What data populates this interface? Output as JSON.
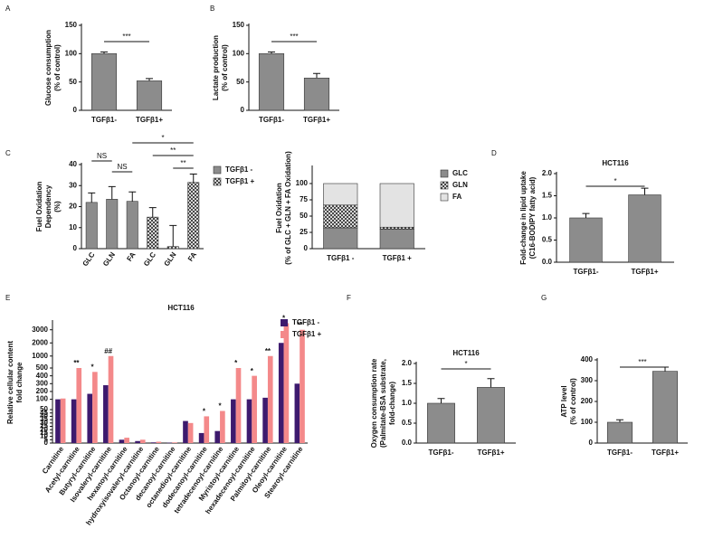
{
  "chart_data": [
    {
      "panel": "A",
      "type": "bar",
      "categories": [
        "TGFβ1-",
        "TGFβ1+"
      ],
      "values": [
        100,
        52
      ],
      "errors": [
        3,
        4
      ],
      "color": "#8c8c8c",
      "ylabel": [
        "Glucose consumption",
        "(% of control)"
      ],
      "ylim": [
        0,
        150
      ],
      "yticks": [
        0,
        50,
        100,
        150
      ],
      "annotations": [
        "***"
      ]
    },
    {
      "panel": "B",
      "type": "bar",
      "categories": [
        "TGFβ1-",
        "TGFβ1+"
      ],
      "values": [
        100,
        57
      ],
      "errors": [
        3,
        8
      ],
      "color": "#8c8c8c",
      "ylabel": [
        "Lactate production",
        "(% of control)"
      ],
      "ylim": [
        0,
        150
      ],
      "yticks": [
        0,
        50,
        100,
        150
      ],
      "annotations": [
        "***"
      ]
    },
    {
      "panel": "C",
      "type": "bar",
      "categories": [
        "GLC",
        "GLN",
        "FA",
        "GLC",
        "GLN",
        "FA"
      ],
      "series": [
        {
          "name": "TGFβ1 -",
          "color": "#8c8c8c",
          "values": [
            22,
            23.5,
            22.5,
            null,
            null,
            null
          ],
          "errors": [
            4.5,
            6,
            4.5,
            null,
            null,
            null
          ]
        },
        {
          "name": "TGFβ1 +",
          "color": "#ffffff",
          "pattern": "crosshatch",
          "values": [
            null,
            null,
            null,
            15,
            1,
            31.5
          ],
          "errors": [
            null,
            null,
            null,
            4.5,
            10,
            4
          ]
        }
      ],
      "ylabel": [
        "Fuel Oxidation",
        "Dependency",
        "(%)"
      ],
      "ylim": [
        0,
        40
      ],
      "yticks": [
        0,
        10,
        20,
        30,
        40
      ],
      "annotations": [
        "NS",
        "NS",
        "*",
        "**",
        "**"
      ]
    },
    {
      "type": "stacked_bar",
      "categories": [
        "TGFβ1 -",
        "TGFβ1 +"
      ],
      "series": [
        {
          "name": "GLC",
          "color": "#8c8c8c",
          "values": [
            32,
            30
          ]
        },
        {
          "name": "GLN",
          "color": "#ffffff",
          "pattern": "crosshatch",
          "values": [
            35,
            3
          ]
        },
        {
          "name": "FA",
          "color": "#e3e3e3",
          "values": [
            33,
            67
          ]
        }
      ],
      "ylabel": [
        "Fuel Oxidation",
        "(% of GLC + GLN + FA Oxidation)"
      ],
      "ylim": [
        0,
        125
      ],
      "yticks": [
        0,
        25,
        50,
        75,
        100
      ]
    },
    {
      "panel": "D",
      "type": "bar",
      "title": "HCT116",
      "categories": [
        "TGFβ1-",
        "TGFβ1+"
      ],
      "values": [
        1.0,
        1.52
      ],
      "errors": [
        0.1,
        0.15
      ],
      "color": "#8c8c8c",
      "ylabel": [
        "Fold-change in lipid uptake",
        "(C16-BODIPY fatty acid)"
      ],
      "ylim": [
        0,
        2.0
      ],
      "yticks": [
        {
          "value": 0,
          "label": "0.0"
        },
        0.5,
        {
          "value": 1,
          "label": "1.0"
        },
        1.5,
        {
          "value": 2,
          "label": "2.0"
        }
      ],
      "annotations": [
        "*"
      ]
    },
    {
      "panel": "E",
      "type": "bar",
      "title": "HCT116",
      "categories": [
        "Carnitine",
        "Acetyl-carnitine",
        "Butyryl-carnitine",
        "Isovaleryl-carnitine",
        "hexanoyl-carnitine",
        "hydroxyisovaleryl-carnitine",
        "Octanoyl-carnitine",
        "decanoyl-carnitine",
        "octanedioyl-carnitine",
        "dodecanoyl-carnitine",
        "tetradecenoyl-carnitine",
        "Myristoyl-carnitine",
        "hexadecenoyl-carnitine",
        "Palmitoyl-carnitine",
        "Oleoyl-carnitine",
        "Stearoyl-carnitine"
      ],
      "series": [
        {
          "name": "TGFβ1 -",
          "color": "#3d1a6e",
          "values": [
            100,
            100,
            170,
            280,
            5,
            3,
            1,
            0.5,
            33,
            15,
            18,
            100,
            100,
            120,
            2000,
            300
          ]
        },
        {
          "name": "TGFβ1 +",
          "color": "#f4898a",
          "values": [
            110,
            500,
            450,
            1000,
            8,
            5,
            2,
            1,
            30,
            40,
            48,
            500,
            400,
            1000,
            3500,
            3000
          ]
        }
      ],
      "ylabel": [
        "Relative cellular content",
        "fold change"
      ],
      "ybreaks": [
        [
          0,
          55
        ],
        [
          80,
          550
        ],
        [
          800,
          3600
        ]
      ],
      "yticks": [
        0,
        5,
        10,
        15,
        20,
        25,
        30,
        35,
        40,
        45,
        50,
        100,
        200,
        300,
        400,
        500,
        1000,
        2000,
        3000
      ],
      "annotations": [
        "**",
        "*",
        "##",
        "*",
        "*",
        "*",
        "*",
        "**",
        "*",
        "**"
      ]
    },
    {
      "panel": "F",
      "type": "bar",
      "title": "HCT116",
      "categories": [
        "TGFβ1-",
        "TGFβ1+"
      ],
      "values": [
        1.0,
        1.4
      ],
      "errors": [
        0.12,
        0.22
      ],
      "color": "#8c8c8c",
      "ylabel": [
        "Oxygen consumption rate",
        "(Palmitate-BSA substrate,",
        "fold-change)"
      ],
      "ylim": [
        0,
        2.0
      ],
      "yticks": [
        {
          "value": 0,
          "label": "0.0"
        },
        0.5,
        {
          "value": 1,
          "label": "1.0"
        },
        1.5,
        {
          "value": 2,
          "label": "2.0"
        }
      ],
      "annotations": [
        "*"
      ]
    },
    {
      "panel": "G",
      "type": "bar",
      "categories": [
        "TGFβ1-",
        "TGFβ1+"
      ],
      "values": [
        100,
        345
      ],
      "errors": [
        12,
        20
      ],
      "color": "#8c8c8c",
      "ylabel": [
        "ATP level",
        "(% of control)"
      ],
      "ylim": [
        0,
        400
      ],
      "yticks": [
        0,
        100,
        200,
        300,
        400
      ],
      "annotations": [
        "***"
      ]
    }
  ]
}
